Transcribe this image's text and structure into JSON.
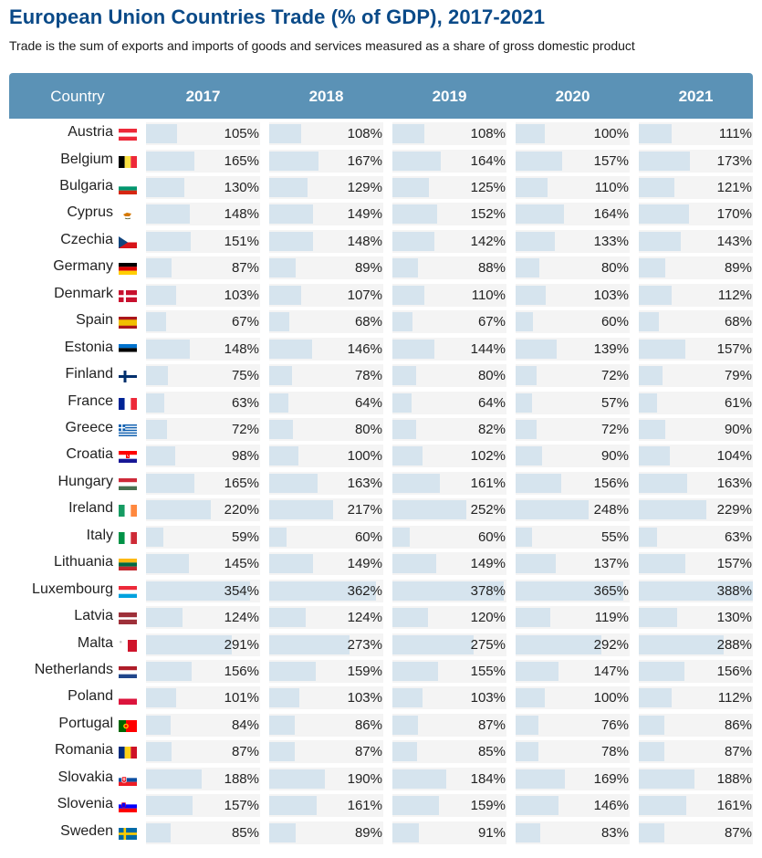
{
  "title": "European Union Countries Trade (% of GDP), 2017-2021",
  "subtitle": "Trade is the sum of exports and imports of goods and services measured as a share of gross domestic product",
  "header": {
    "country": "Country"
  },
  "colors": {
    "header_bg": "#5b92b6",
    "bar": "#d6e4ee",
    "row_alt": "#f4f4f4",
    "title": "#0a4a88"
  },
  "chart_data": {
    "type": "table",
    "title": "European Union Countries Trade (% of GDP), 2017-2021",
    "unit": "%",
    "columns": [
      "2017",
      "2018",
      "2019",
      "2020",
      "2021"
    ],
    "bar_max": 388,
    "rows": [
      {
        "country": "Austria",
        "flag": "at",
        "values": [
          105,
          108,
          108,
          100,
          111
        ]
      },
      {
        "country": "Belgium",
        "flag": "be",
        "values": [
          165,
          167,
          164,
          157,
          173
        ]
      },
      {
        "country": "Bulgaria",
        "flag": "bg",
        "values": [
          130,
          129,
          125,
          110,
          121
        ]
      },
      {
        "country": "Cyprus",
        "flag": "cy",
        "values": [
          148,
          149,
          152,
          164,
          170
        ]
      },
      {
        "country": "Czechia",
        "flag": "cz",
        "values": [
          151,
          148,
          142,
          133,
          143
        ]
      },
      {
        "country": "Germany",
        "flag": "de",
        "values": [
          87,
          89,
          88,
          80,
          89
        ]
      },
      {
        "country": "Denmark",
        "flag": "dk",
        "values": [
          103,
          107,
          110,
          103,
          112
        ]
      },
      {
        "country": "Spain",
        "flag": "es",
        "values": [
          67,
          68,
          67,
          60,
          68
        ]
      },
      {
        "country": "Estonia",
        "flag": "ee",
        "values": [
          148,
          146,
          144,
          139,
          157
        ]
      },
      {
        "country": "Finland",
        "flag": "fi",
        "values": [
          75,
          78,
          80,
          72,
          79
        ]
      },
      {
        "country": "France",
        "flag": "fr",
        "values": [
          63,
          64,
          64,
          57,
          61
        ]
      },
      {
        "country": "Greece",
        "flag": "gr",
        "values": [
          72,
          80,
          82,
          72,
          90
        ]
      },
      {
        "country": "Croatia",
        "flag": "hr",
        "values": [
          98,
          100,
          102,
          90,
          104
        ]
      },
      {
        "country": "Hungary",
        "flag": "hu",
        "values": [
          165,
          163,
          161,
          156,
          163
        ]
      },
      {
        "country": "Ireland",
        "flag": "ie",
        "values": [
          220,
          217,
          252,
          248,
          229
        ]
      },
      {
        "country": "Italy",
        "flag": "it",
        "values": [
          59,
          60,
          60,
          55,
          63
        ]
      },
      {
        "country": "Lithuania",
        "flag": "lt",
        "values": [
          145,
          149,
          149,
          137,
          157
        ]
      },
      {
        "country": "Luxembourg",
        "flag": "lu",
        "values": [
          354,
          362,
          378,
          365,
          388
        ]
      },
      {
        "country": "Latvia",
        "flag": "lv",
        "values": [
          124,
          124,
          120,
          119,
          130
        ]
      },
      {
        "country": "Malta",
        "flag": "mt",
        "values": [
          291,
          273,
          275,
          292,
          288
        ]
      },
      {
        "country": "Netherlands",
        "flag": "nl",
        "values": [
          156,
          159,
          155,
          147,
          156
        ]
      },
      {
        "country": "Poland",
        "flag": "pl",
        "values": [
          101,
          103,
          103,
          100,
          112
        ]
      },
      {
        "country": "Portugal",
        "flag": "pt",
        "values": [
          84,
          86,
          87,
          76,
          86
        ]
      },
      {
        "country": "Romania",
        "flag": "ro",
        "values": [
          87,
          87,
          85,
          78,
          87
        ]
      },
      {
        "country": "Slovakia",
        "flag": "sk",
        "values": [
          188,
          190,
          184,
          169,
          188
        ]
      },
      {
        "country": "Slovenia",
        "flag": "si",
        "values": [
          157,
          161,
          159,
          146,
          161
        ]
      },
      {
        "country": "Sweden",
        "flag": "se",
        "values": [
          85,
          89,
          91,
          83,
          87
        ]
      }
    ]
  }
}
